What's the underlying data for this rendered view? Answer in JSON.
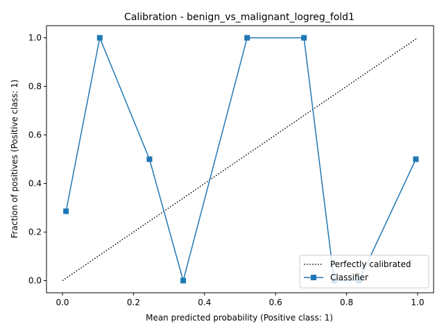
{
  "chart_data": {
    "type": "line",
    "title": "Calibration - benign_vs_malignant_logreg_fold1",
    "xlabel": "Mean predicted probability (Positive class: 1)",
    "ylabel": "Fraction of positives (Positive class: 1)",
    "xlim": [
      -0.045,
      1.045
    ],
    "ylim": [
      -0.05,
      1.05
    ],
    "xticks": [
      0.0,
      0.2,
      0.4,
      0.6,
      0.8,
      1.0
    ],
    "xtick_labels": [
      "0.0",
      "0.2",
      "0.4",
      "0.6",
      "0.8",
      "1.0"
    ],
    "yticks": [
      0.0,
      0.2,
      0.4,
      0.6,
      0.8,
      1.0
    ],
    "ytick_labels": [
      "0.0",
      "0.2",
      "0.4",
      "0.6",
      "0.8",
      "1.0"
    ],
    "grid": false,
    "legend_position": "lower-right",
    "series": [
      {
        "name": "Perfectly calibrated",
        "style": "dotted",
        "color": "#000000",
        "marker": "none",
        "x": [
          0.0,
          1.0
        ],
        "y": [
          0.0,
          1.0
        ]
      },
      {
        "name": "Classifier",
        "style": "solid",
        "color": "#1f77b4",
        "marker": "square",
        "x": [
          0.01,
          0.105,
          0.245,
          0.34,
          0.52,
          0.68,
          0.765,
          0.835,
          0.995
        ],
        "y": [
          0.2857,
          1.0,
          0.5,
          0.0,
          1.0,
          1.0,
          0.0,
          0.0,
          0.5
        ]
      }
    ]
  }
}
